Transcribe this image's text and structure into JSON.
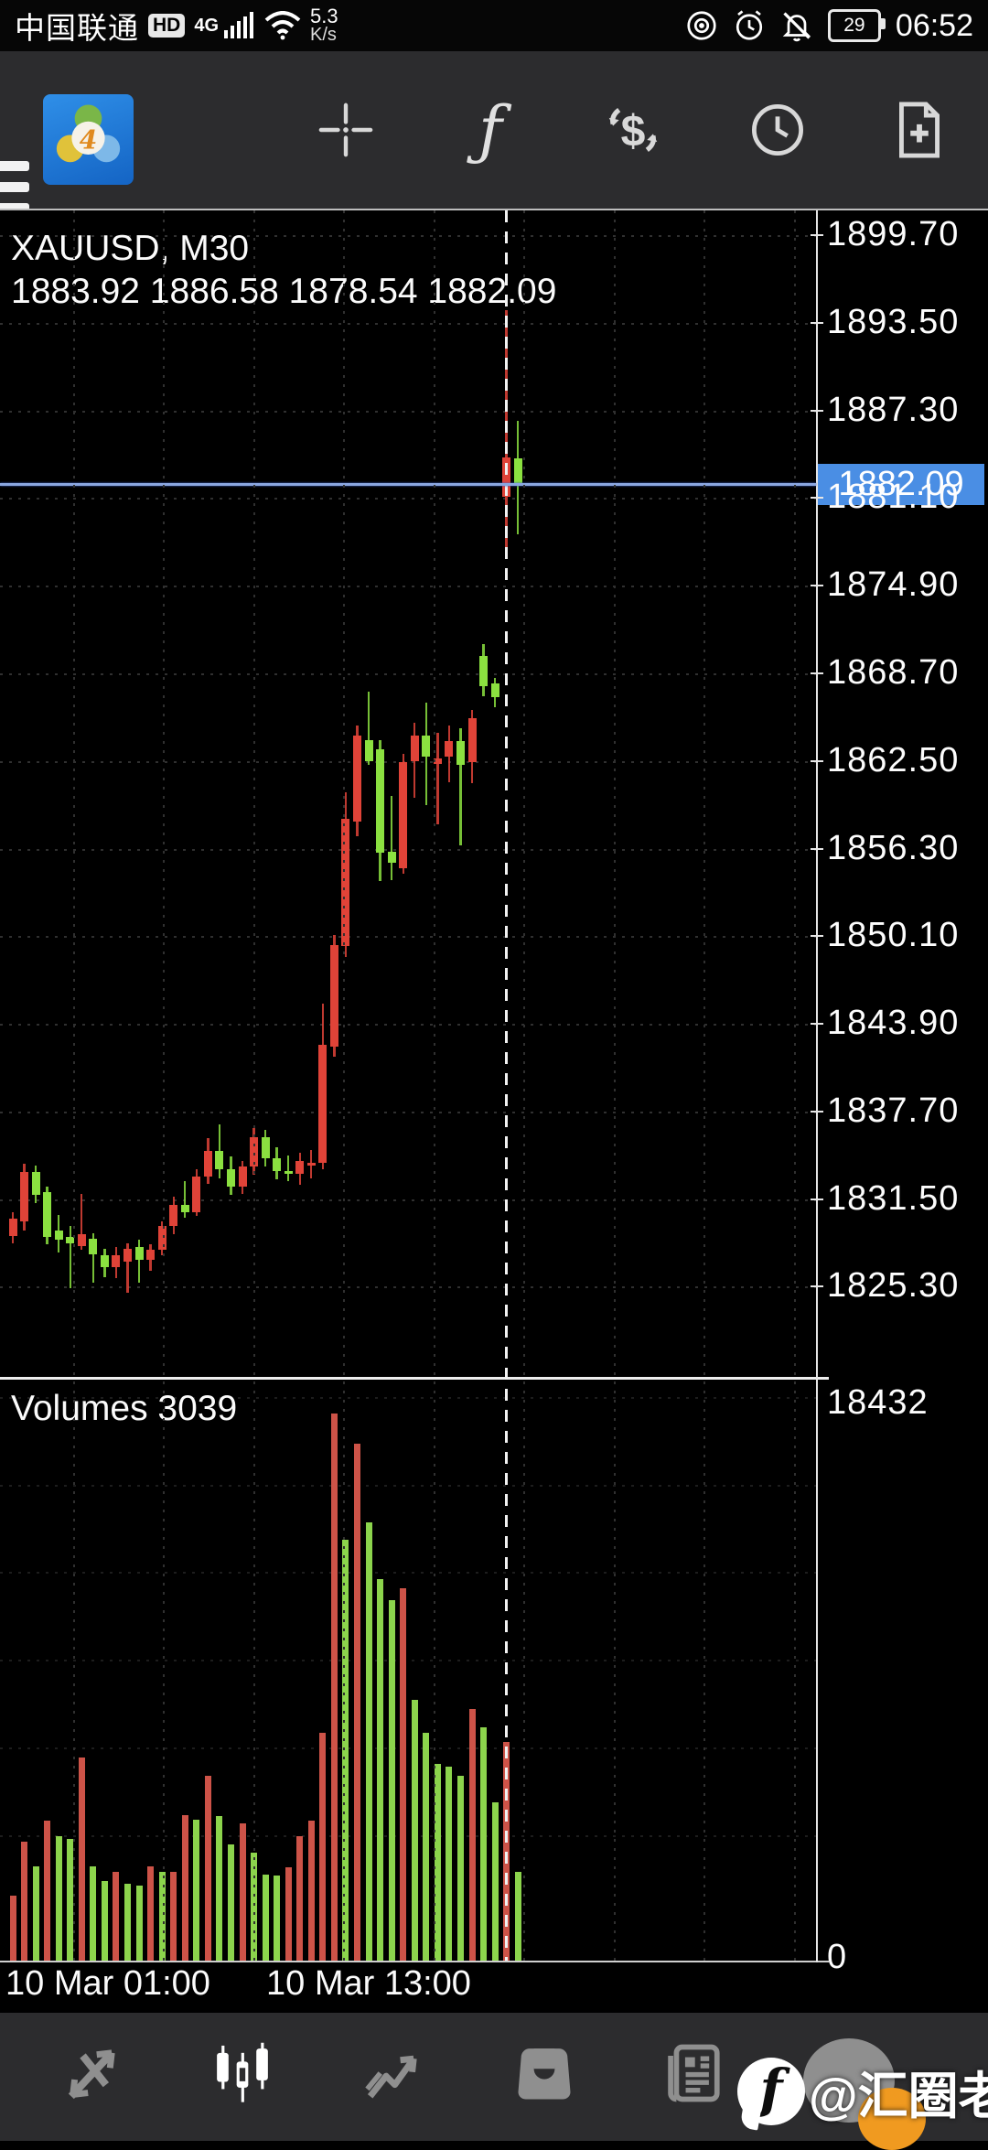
{
  "status_bar": {
    "carrier": "中国联通",
    "hd_badge": "HD",
    "network": "4G",
    "speed_value": "5.3",
    "speed_unit": "K/s",
    "battery_level": "29",
    "clock": "06:52"
  },
  "toolbar": {
    "function_glyph": "ƒ",
    "dollar_glyph": "$"
  },
  "chart": {
    "header_symbol": "XAUUSD, M30",
    "header_ohlc": "1883.92 1886.58 1878.54 1882.09",
    "current_price_label": "1882.09",
    "covered_tick_label": "1881.10",
    "volume_title": "Volumes 3039",
    "volume_axis_max": "18432",
    "volume_axis_min": "0",
    "time_labels": [
      {
        "text": "10 Mar 01:00"
      },
      {
        "text": "10 Mar 13:00"
      }
    ]
  },
  "chart_data": {
    "type": "candlestick",
    "symbol": "XAUUSD",
    "timeframe": "M30",
    "color_convention": "red = bullish, green = bearish (CN style); volume bar red = volume >= previous",
    "current_bar": {
      "open": 1883.92,
      "high": 1886.58,
      "low": 1878.54,
      "close": 1882.09,
      "volume": 3039
    },
    "price_ticks": [
      1899.7,
      1893.5,
      1887.3,
      1881.1,
      1874.9,
      1868.7,
      1862.5,
      1856.3,
      1850.1,
      1843.9,
      1837.7,
      1831.5,
      1825.3
    ],
    "volume_axis": {
      "max": 18432,
      "min": 0
    },
    "crosshair_index": 43,
    "time_axis_labels": [
      "10 Mar 01:00",
      "10 Mar 13:00"
    ],
    "candles_format": [
      "open",
      "high",
      "low",
      "close",
      "volume"
    ],
    "candles": [
      [
        1828.9,
        1830.6,
        1828.4,
        1830.1,
        2230
      ],
      [
        1829.9,
        1834.0,
        1829.3,
        1833.4,
        4050
      ],
      [
        1833.4,
        1833.9,
        1831.2,
        1831.8,
        3240
      ],
      [
        1832.0,
        1832.4,
        1828.3,
        1828.8,
        4760
      ],
      [
        1829.3,
        1830.4,
        1827.7,
        1828.6,
        4250
      ],
      [
        1828.8,
        1829.6,
        1825.2,
        1828.4,
        4150
      ],
      [
        1828.2,
        1831.9,
        1827.9,
        1829.0,
        6890
      ],
      [
        1828.7,
        1829.1,
        1825.6,
        1827.6,
        3240
      ],
      [
        1827.5,
        1828.0,
        1826.0,
        1826.7,
        2730
      ],
      [
        1826.7,
        1828.1,
        1825.9,
        1827.5,
        3040
      ],
      [
        1827.1,
        1828.4,
        1824.9,
        1828.0,
        2630
      ],
      [
        1828.1,
        1828.6,
        1825.6,
        1827.2,
        2590
      ],
      [
        1827.2,
        1828.3,
        1826.4,
        1827.9,
        3240
      ],
      [
        1827.9,
        1829.9,
        1827.5,
        1829.6,
        3040
      ],
      [
        1829.6,
        1831.7,
        1829.0,
        1831.1,
        3040
      ],
      [
        1831.1,
        1832.8,
        1830.2,
        1830.6,
        4960
      ],
      [
        1830.6,
        1833.6,
        1830.3,
        1833.1,
        4800
      ],
      [
        1833.1,
        1835.8,
        1832.6,
        1834.9,
        6280
      ],
      [
        1834.9,
        1836.8,
        1833.0,
        1833.6,
        4900
      ],
      [
        1833.6,
        1834.5,
        1831.8,
        1832.4,
        3950
      ],
      [
        1832.4,
        1834.2,
        1831.9,
        1833.8,
        4660
      ],
      [
        1833.8,
        1836.5,
        1833.2,
        1835.9,
        3690
      ],
      [
        1835.9,
        1836.4,
        1833.8,
        1834.4,
        2940
      ],
      [
        1834.4,
        1835.2,
        1832.9,
        1833.5,
        2920
      ],
      [
        1833.5,
        1834.6,
        1832.8,
        1833.3,
        3180
      ],
      [
        1833.3,
        1834.8,
        1832.5,
        1834.2,
        4250
      ],
      [
        1833.9,
        1835.0,
        1833.0,
        1834.1,
        4760
      ],
      [
        1834.1,
        1845.3,
        1833.6,
        1842.4,
        7700
      ],
      [
        1842.3,
        1850.2,
        1841.6,
        1849.5,
        18432
      ],
      [
        1849.4,
        1860.3,
        1848.6,
        1858.4,
        14180
      ],
      [
        1858.2,
        1865.0,
        1857.2,
        1864.3,
        17420
      ],
      [
        1864.0,
        1867.4,
        1862.2,
        1862.5,
        14790
      ],
      [
        1863.3,
        1864.0,
        1854.0,
        1856.0,
        12860
      ],
      [
        1856.1,
        1860.0,
        1854.1,
        1855.3,
        12150
      ],
      [
        1854.9,
        1863.0,
        1854.5,
        1862.4,
        12560
      ],
      [
        1862.5,
        1865.2,
        1859.9,
        1864.3,
        8810
      ],
      [
        1864.3,
        1866.6,
        1859.4,
        1862.8,
        7700
      ],
      [
        1862.3,
        1864.5,
        1858.0,
        1862.7,
        6680
      ],
      [
        1862.8,
        1865.0,
        1861.0,
        1863.9,
        6580
      ],
      [
        1863.9,
        1864.8,
        1856.5,
        1862.2,
        6280
      ],
      [
        1862.4,
        1866.1,
        1860.9,
        1865.5,
        8510
      ],
      [
        1869.9,
        1870.8,
        1867.1,
        1867.8,
        7900
      ],
      [
        1868.0,
        1868.4,
        1866.3,
        1867.0,
        5370
      ],
      [
        1881.2,
        1894.4,
        1877.5,
        1884.0,
        7390
      ],
      [
        1883.92,
        1886.58,
        1878.54,
        1882.09,
        3039
      ]
    ],
    "colors": {
      "bull": "#e04338",
      "bear": "#8be040",
      "volume_up": "#cd5348",
      "volume_down": "#8cd44c",
      "price_line": "#8aa6e0",
      "price_label_bg": "#4a8ee4",
      "grid": "#303030"
    }
  },
  "watermark": {
    "handle": "@汇圈老陈_"
  }
}
